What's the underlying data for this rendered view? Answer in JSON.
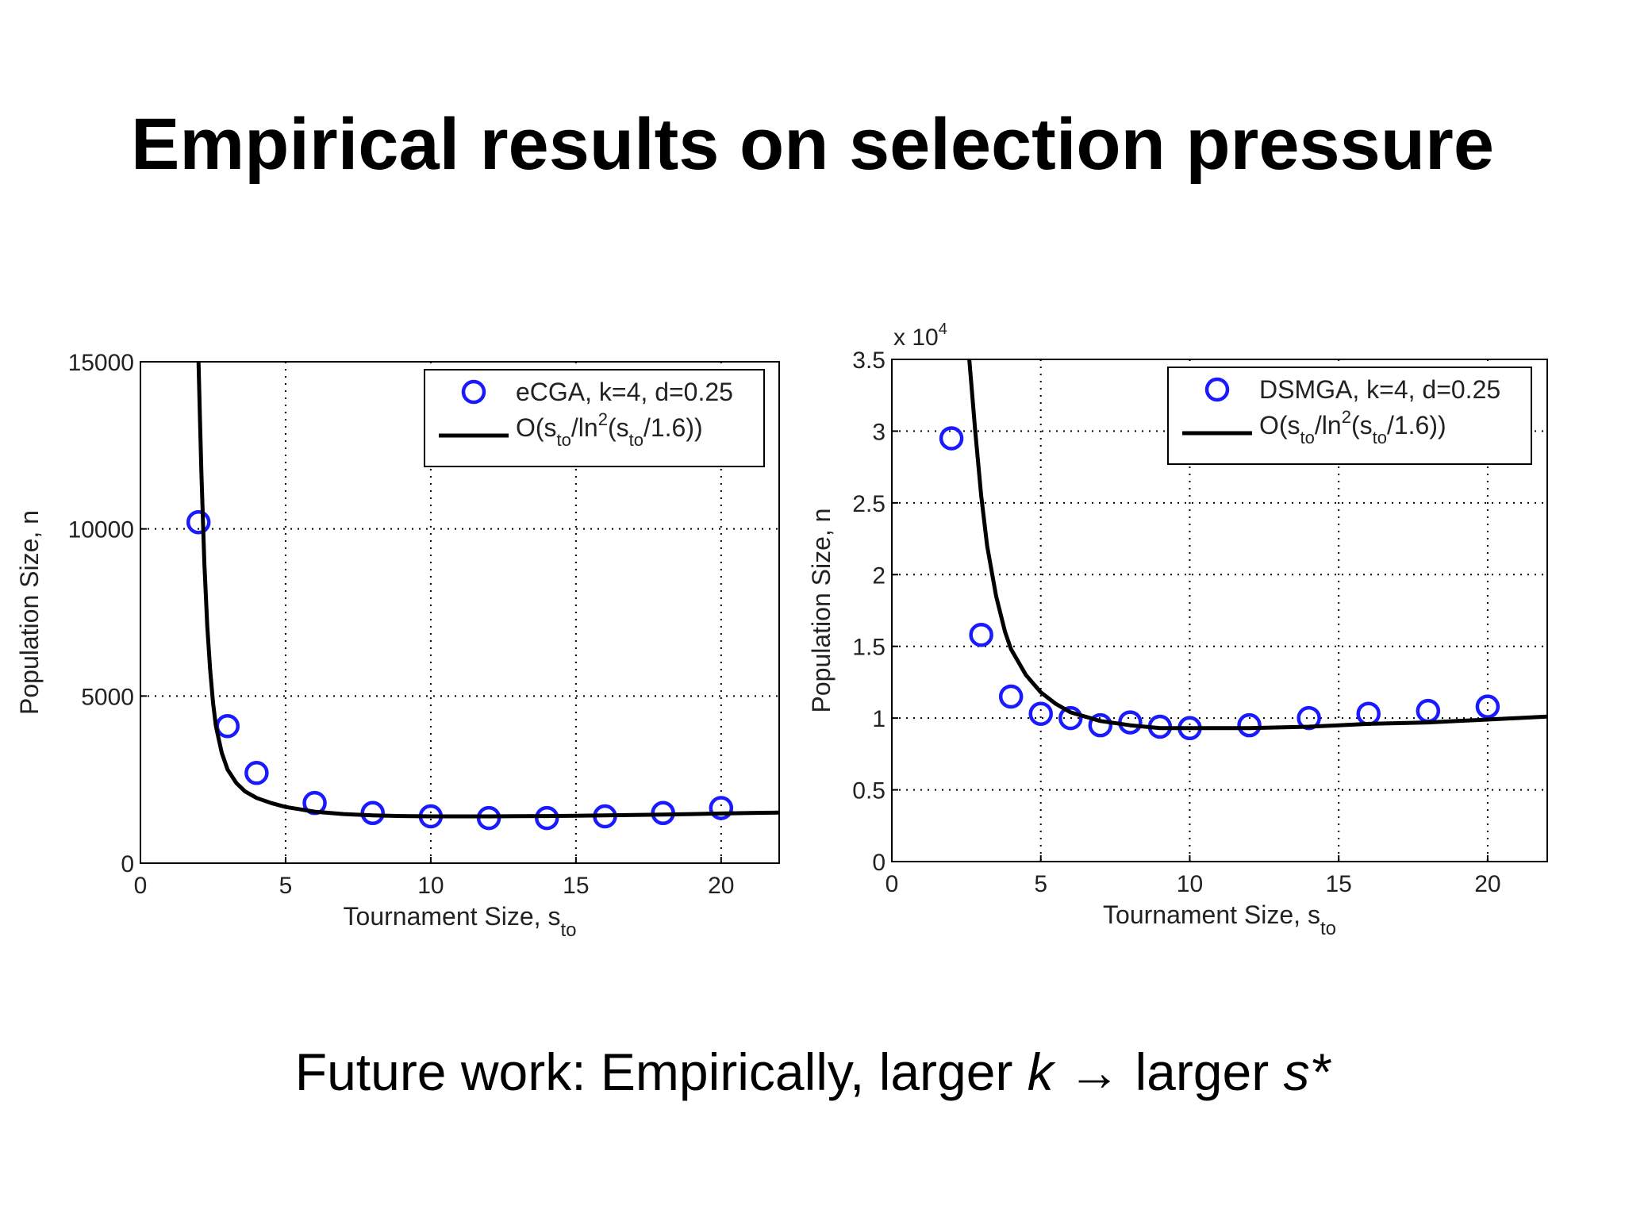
{
  "slide": {
    "title": "Empirical results on selection pressure",
    "footer_pre": "Future work: Empirically, larger ",
    "footer_k": "k",
    "footer_arrow": "→",
    "footer_mid": " larger ",
    "footer_s": "s*"
  },
  "chart_data": [
    {
      "type": "scatter",
      "xlabel": "Tournament Size, s",
      "xlabel_sub": "to",
      "ylabel": "Population Size, n",
      "xlim": [
        0,
        22
      ],
      "ylim": [
        0,
        15000
      ],
      "xticks": [
        0,
        5,
        10,
        15,
        20
      ],
      "yticks": [
        0,
        5000,
        10000,
        15000
      ],
      "ytick_labels": [
        "0",
        "5000",
        "10000",
        "15000"
      ],
      "exponent_label": "",
      "grid": true,
      "legend_position": "top-right",
      "series": [
        {
          "name": "eCGA, k=4, d=0.25",
          "kind": "markers",
          "color": "#1a1aff",
          "x": [
            2,
            3,
            4,
            6,
            8,
            10,
            12,
            14,
            16,
            18,
            20
          ],
          "y": [
            10200,
            4100,
            2700,
            1800,
            1500,
            1400,
            1350,
            1350,
            1400,
            1500,
            1650
          ]
        },
        {
          "name_parts": [
            "O(s",
            "to",
            "/ln",
            "2",
            "(s",
            "to",
            "/1.6))"
          ],
          "kind": "line",
          "color": "#000000",
          "x": [
            2.0,
            2.05,
            2.1,
            2.2,
            2.3,
            2.4,
            2.5,
            2.6,
            2.8,
            3.0,
            3.3,
            3.6,
            4.0,
            4.5,
            5,
            6,
            7,
            8,
            9,
            10,
            11,
            12,
            13,
            14,
            15,
            16,
            17,
            18,
            19,
            20,
            21,
            22
          ],
          "y": [
            15000,
            13300,
            11700,
            9000,
            7100,
            5800,
            4800,
            4100,
            3300,
            2800,
            2400,
            2150,
            1950,
            1800,
            1680,
            1540,
            1470,
            1430,
            1410,
            1400,
            1400,
            1400,
            1405,
            1410,
            1420,
            1430,
            1440,
            1455,
            1470,
            1485,
            1500,
            1515
          ]
        }
      ]
    },
    {
      "type": "scatter",
      "xlabel": "Tournament Size, s",
      "xlabel_sub": "to",
      "ylabel": "Population Size, n",
      "xlim": [
        0,
        22
      ],
      "ylim": [
        0,
        3.5
      ],
      "xticks": [
        0,
        5,
        10,
        15,
        20
      ],
      "yticks": [
        0,
        0.5,
        1,
        1.5,
        2,
        2.5,
        3,
        3.5
      ],
      "ytick_labels": [
        "0",
        "0.5",
        "1",
        "1.5",
        "2",
        "2.5",
        "3",
        "3.5"
      ],
      "exponent_label": "x 10",
      "exponent_power": "4",
      "grid": true,
      "legend_position": "top-right",
      "series": [
        {
          "name": "DSMGA, k=4, d=0.25",
          "kind": "markers",
          "color": "#1a1aff",
          "x": [
            2,
            3,
            4,
            5,
            6,
            7,
            8,
            9,
            10,
            12,
            14,
            16,
            18,
            20
          ],
          "y": [
            2.95,
            1.58,
            1.15,
            1.03,
            1.0,
            0.95,
            0.97,
            0.94,
            0.93,
            0.95,
            1.0,
            1.03,
            1.05,
            1.08
          ],
          "y_scale": "x 10^4"
        },
        {
          "name_parts": [
            "O(s",
            "to",
            "/ln",
            "2",
            "(s",
            "to",
            "/1.6))"
          ],
          "kind": "line",
          "color": "#000000",
          "x": [
            2.6,
            2.8,
            3.0,
            3.2,
            3.5,
            3.8,
            4.0,
            4.5,
            5,
            5.5,
            6,
            7,
            8,
            9,
            10,
            11,
            12,
            13,
            14,
            15,
            16,
            17,
            18,
            19,
            20,
            21,
            22
          ],
          "y": [
            3.5,
            3.0,
            2.55,
            2.2,
            1.85,
            1.6,
            1.48,
            1.3,
            1.18,
            1.1,
            1.04,
            0.98,
            0.95,
            0.93,
            0.93,
            0.93,
            0.93,
            0.935,
            0.94,
            0.95,
            0.96,
            0.965,
            0.97,
            0.98,
            0.99,
            1.0,
            1.01
          ],
          "y_scale": "x 10^4"
        }
      ]
    }
  ]
}
